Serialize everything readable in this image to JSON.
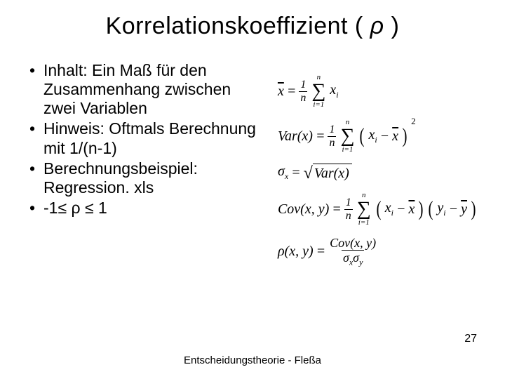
{
  "title_prefix": "Korrelationskoeffizient ( ",
  "title_symbol": "ρ",
  "title_suffix": " )",
  "bullets": {
    "b1": "Inhalt: Ein Maß für den Zusammenhang zwischen zwei Variablen",
    "b2": "Hinweis: Oftmals Berechnung mit 1/(n-1)",
    "b3": "Berechnungsbeispiel: Regression. xls",
    "b4": "-1≤ ρ ≤ 1"
  },
  "formulas": {
    "mean": {
      "lhs": "x",
      "eq": "=",
      "frac_num": "1",
      "frac_den": "n",
      "sum_top": "n",
      "sum_bot": "i=1",
      "term": "x",
      "term_sub": "i"
    },
    "var": {
      "lhs": "Var",
      "arg": "x",
      "eq": "=",
      "frac_num": "1",
      "frac_den": "n",
      "sum_top": "n",
      "sum_bot": "i=1",
      "term1": "x",
      "term1_sub": "i",
      "minus": "−",
      "term2": "x",
      "power": "2"
    },
    "sigma": {
      "lhs": "σ",
      "lhs_sub": "x",
      "eq": "=",
      "arg": "Var",
      "arg_x": "x"
    },
    "cov": {
      "lhs": "Cov",
      "argx": "x",
      "argy": "y",
      "eq": "=",
      "frac_num": "1",
      "frac_den": "n",
      "sum_top": "n",
      "sum_bot": "i=1",
      "t1": "x",
      "t1s": "i",
      "m": "−",
      "t2": "x",
      "t3": "y",
      "t3s": "i",
      "t4": "y"
    },
    "rho": {
      "lhs": "ρ",
      "argx": "x",
      "argy": "y",
      "eq": "=",
      "num": "Cov",
      "numx": "x",
      "numy": "y",
      "d1": "σ",
      "d1s": "x",
      "d2": "σ",
      "d2s": "y"
    }
  },
  "footer": "Entscheidungstheorie - Fleßa",
  "page_number": "27",
  "colors": {
    "background": "#ffffff",
    "text": "#000000"
  },
  "typography": {
    "title_fontsize": 34,
    "bullet_fontsize": 23,
    "formula_fontsize": 20,
    "footer_fontsize": 15
  }
}
